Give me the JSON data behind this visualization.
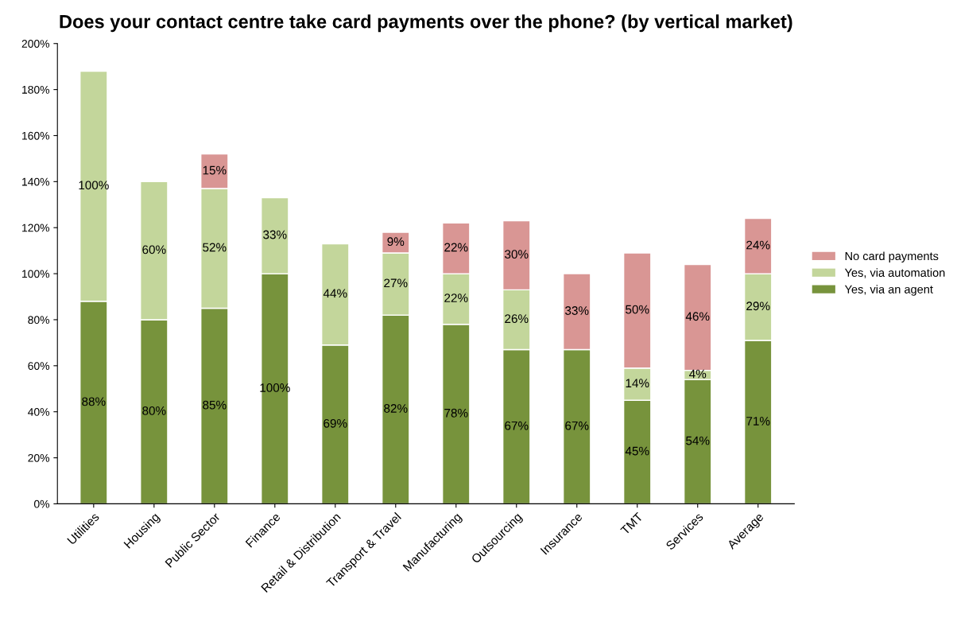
{
  "chart_data": {
    "type": "bar",
    "stacked": true,
    "title": "Does your contact centre take card payments over the phone? (by vertical market)",
    "categories": [
      "Utilities",
      "Housing",
      "Public Sector",
      "Finance",
      "Retail & Distribution",
      "Transport & Travel",
      "Manufacturing",
      "Outsourcing",
      "Insurance",
      "TMT",
      "Services",
      "Average"
    ],
    "series": [
      {
        "name": "Yes, via an agent",
        "color": "#77933c",
        "values": [
          88,
          80,
          85,
          100,
          69,
          82,
          78,
          67,
          67,
          45,
          54,
          71
        ],
        "value_labels": [
          "88%",
          "80%",
          "85%",
          "100%",
          "69%",
          "82%",
          "78%",
          "67%",
          "67%",
          "45%",
          "54%",
          "71%"
        ]
      },
      {
        "name": "Yes, via automation",
        "color": "#c3d69b",
        "values": [
          100,
          60,
          52,
          33,
          44,
          27,
          22,
          26,
          null,
          14,
          4,
          29
        ],
        "value_labels": [
          "100%",
          "60%",
          "52%",
          "33%",
          "44%",
          "27%",
          "22%",
          "26%",
          null,
          "14%",
          "4%",
          "29%"
        ]
      },
      {
        "name": "No card payments",
        "color": "#d99694",
        "values": [
          null,
          null,
          15,
          null,
          null,
          9,
          22,
          30,
          33,
          50,
          46,
          24
        ],
        "value_labels": [
          null,
          null,
          "15%",
          null,
          null,
          "9%",
          "22%",
          "30%",
          "33%",
          "50%",
          "46%",
          "24%"
        ]
      }
    ],
    "ylim": [
      0,
      200
    ],
    "yticks": [
      {
        "value": 0,
        "label": "0%"
      },
      {
        "value": 20,
        "label": "20%"
      },
      {
        "value": 40,
        "label": "40%"
      },
      {
        "value": 60,
        "label": "60%"
      },
      {
        "value": 80,
        "label": "80%"
      },
      {
        "value": 100,
        "label": "100%"
      },
      {
        "value": 120,
        "label": "120%"
      },
      {
        "value": 140,
        "label": "140%"
      },
      {
        "value": 160,
        "label": "160%"
      },
      {
        "value": 180,
        "label": "180%"
      },
      {
        "value": 200,
        "label": "200%"
      }
    ],
    "legend": "right",
    "grid": false
  }
}
